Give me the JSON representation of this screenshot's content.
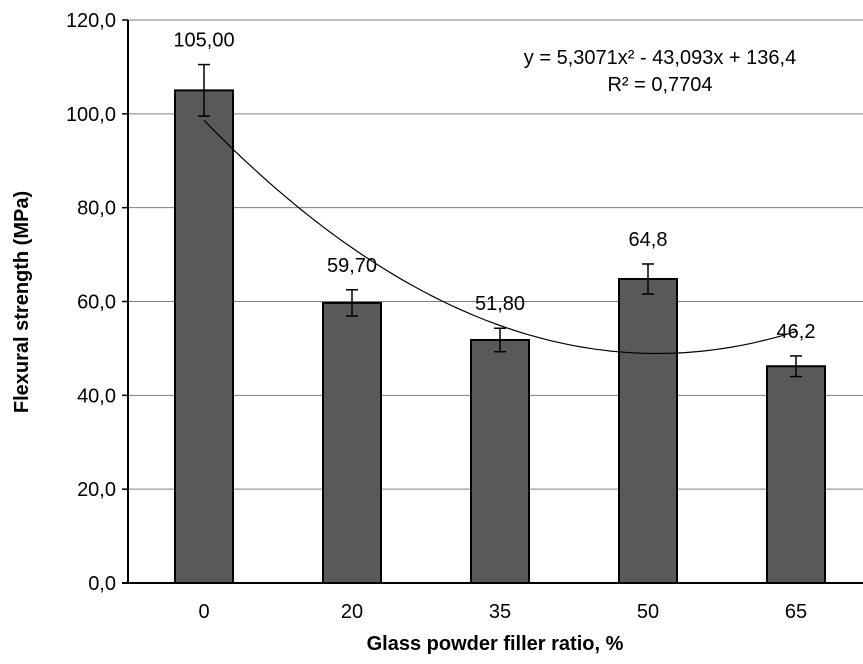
{
  "chart_data": {
    "type": "bar",
    "categories": [
      "0",
      "20",
      "35",
      "50",
      "65"
    ],
    "values": [
      105.0,
      59.7,
      51.8,
      64.8,
      46.2
    ],
    "data_labels": [
      "105,00",
      "59,70",
      "51,80",
      "64,8",
      "46,2"
    ],
    "error_bars": [
      5.5,
      2.8,
      2.5,
      3.2,
      2.2
    ],
    "xlabel": "Glass powder filler ratio, %",
    "ylabel": "Flexural strength (MPa)",
    "ylim": [
      0,
      120
    ],
    "yticks": [
      0,
      20,
      40,
      60,
      80,
      100,
      120
    ],
    "ytick_labels": [
      "0,0",
      "20,0",
      "40,0",
      "60,0",
      "80,0",
      "100,0",
      "120,0"
    ],
    "grid": true,
    "trendline": {
      "type": "polynomial",
      "order": 2,
      "coefficients": [
        5.3071,
        -43.093,
        136.4
      ],
      "equation": "y = 5,3071x² - 43,093x + 136,4",
      "r_squared": "R² = 0,7704"
    },
    "colors": {
      "bar": "#595959",
      "grid": "#808080",
      "axis": "#000000"
    }
  }
}
